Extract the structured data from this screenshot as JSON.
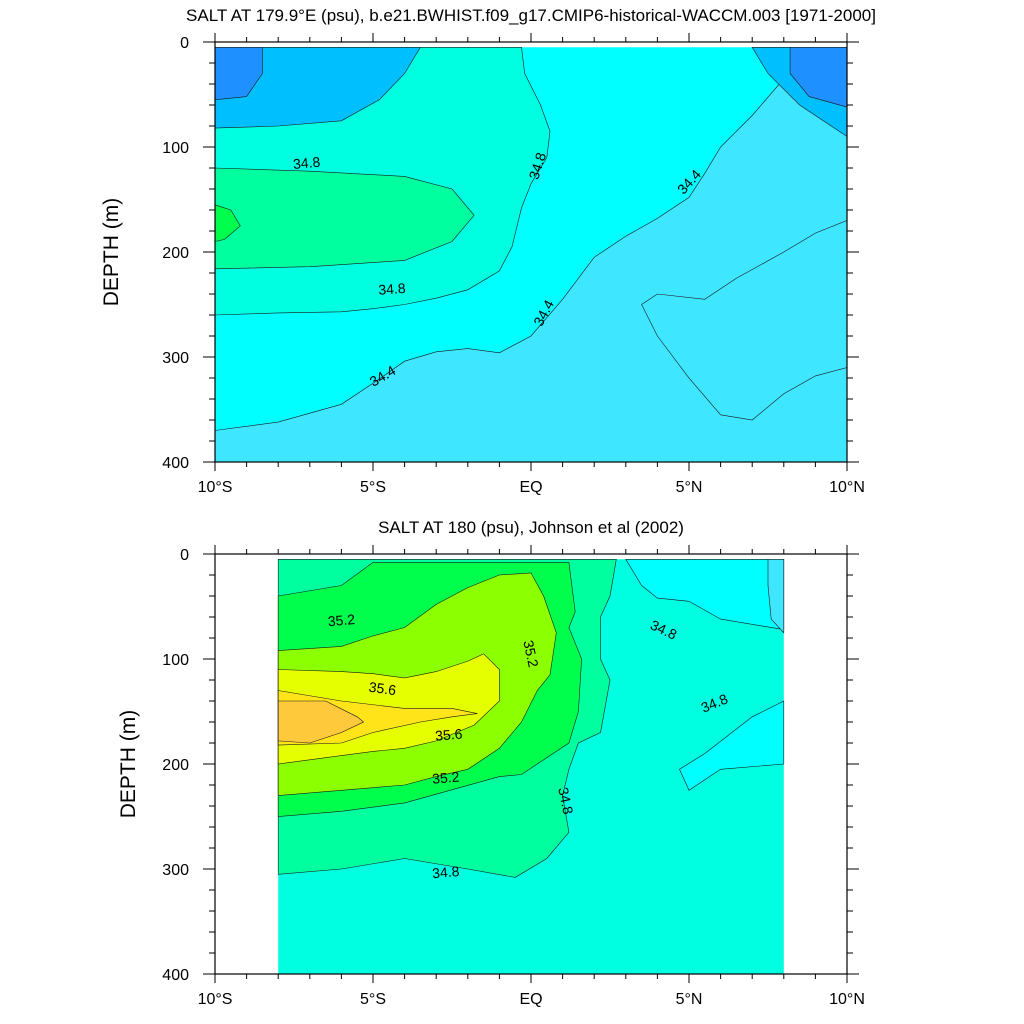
{
  "figure": {
    "panels": [
      {
        "id": "top",
        "title": "SALT AT 179.9°E (psu), b.e21.BWHIST.f09_g17.CMIP6-historical-WACCM.003 [1971-2000]",
        "ylabel": "DEPTH (m)",
        "xticks": [
          "10°S",
          "5°S",
          "EQ",
          "5°N",
          "10°N"
        ],
        "yticks": [
          "0",
          "100",
          "200",
          "300",
          "400"
        ]
      },
      {
        "id": "bottom",
        "title": "SALT AT 180 (psu), Johnson et al (2002)",
        "ylabel": "DEPTH (m)",
        "xticks": [
          "10°S",
          "5°S",
          "EQ",
          "5°N",
          "10°N"
        ],
        "yticks": [
          "0",
          "100",
          "200",
          "300",
          "400"
        ]
      }
    ]
  },
  "chart_data": [
    {
      "type": "heatmap",
      "title": "SALT AT 179.9°E (psu), b.e21.BWHIST.f09_g17.CMIP6-historical-WACCM.003 [1971-2000]",
      "xlabel": "",
      "ylabel": "DEPTH (m)",
      "xlim": [
        -10,
        10
      ],
      "ylim": [
        400,
        0
      ],
      "x_tick_labels": [
        "10°S",
        "5°S",
        "EQ",
        "5°N",
        "10°N"
      ],
      "y_tick_labels": [
        "0",
        "100",
        "200",
        "300",
        "400"
      ],
      "data_extent": {
        "lat": [
          -10,
          10
        ],
        "depth": [
          5,
          400
        ]
      },
      "contour_interval_psu": 0.2,
      "colors": {
        "34.0": "#1e90ff",
        "34.2": "#00bfff",
        "34.4": "#3ee6ff",
        "34.6": "#00ffff",
        "34.8": "#00ffe0",
        "35.0": "#00ff9f",
        "35.2": "#00ff4d",
        "35.4": "#8cff00",
        "35.6": "#e6ff00",
        "35.8": "#ffe41a",
        "36.0": "#ffc93c"
      },
      "regions": [
        {
          "level": 34.6,
          "points": [
            [
              -10,
              5
            ],
            [
              10,
              5
            ],
            [
              10,
              400
            ],
            [
              -10,
              400
            ]
          ]
        },
        {
          "level": 34.4,
          "points": [
            [
              -10,
              370
            ],
            [
              -8,
              362
            ],
            [
              -6,
              345
            ],
            [
              -5,
              325
            ],
            [
              -4,
              304
            ],
            [
              -3,
              295
            ],
            [
              -2,
              292
            ],
            [
              -1,
              296
            ],
            [
              0,
              280
            ],
            [
              1,
              245
            ],
            [
              2,
              205
            ],
            [
              3,
              185
            ],
            [
              4,
              168
            ],
            [
              5,
              148
            ],
            [
              5.5,
              125
            ],
            [
              6,
              100
            ],
            [
              7,
              70
            ],
            [
              8,
              35
            ],
            [
              8.8,
              5
            ],
            [
              10,
              5
            ],
            [
              10,
              400
            ],
            [
              -10,
              400
            ]
          ]
        },
        {
          "level": 34.8,
          "points": [
            [
              -10,
              5
            ],
            [
              -0.3,
              5
            ],
            [
              -0.2,
              30
            ],
            [
              0.3,
              60
            ],
            [
              0.6,
              85
            ],
            [
              0.5,
              110
            ],
            [
              0,
              135
            ],
            [
              -0.3,
              158
            ],
            [
              -0.6,
              195
            ],
            [
              -1,
              218
            ],
            [
              -2,
              236
            ],
            [
              -3,
              244
            ],
            [
              -4,
              250
            ],
            [
              -5,
              254
            ],
            [
              -6,
              257
            ],
            [
              -8,
              258
            ],
            [
              -10,
              260
            ]
          ]
        },
        {
          "level": 34.2,
          "points": [
            [
              10,
              5
            ],
            [
              10,
              90
            ],
            [
              8.5,
              60
            ],
            [
              7.5,
              30
            ],
            [
              7,
              5
            ]
          ]
        },
        {
          "level": 34.2,
          "points": [
            [
              -10,
              5
            ],
            [
              -3.5,
              5
            ],
            [
              -4,
              30
            ],
            [
              -4.8,
              55
            ],
            [
              -6,
              75
            ],
            [
              -8,
              80
            ],
            [
              -10,
              82
            ]
          ]
        },
        {
          "level": 35.0,
          "points": [
            [
              -10,
              120
            ],
            [
              -7,
              123
            ],
            [
              -4,
              128
            ],
            [
              -2.5,
              140
            ],
            [
              -1.8,
              165
            ],
            [
              -2.5,
              190
            ],
            [
              -4,
              208
            ],
            [
              -7,
              214
            ],
            [
              -10,
              216
            ]
          ]
        },
        {
          "level": 34.0,
          "points": [
            [
              10,
              5
            ],
            [
              10,
              62
            ],
            [
              8.8,
              52
            ],
            [
              8.2,
              30
            ],
            [
              8.2,
              5
            ]
          ]
        },
        {
          "level": 34.0,
          "points": [
            [
              -10,
              5
            ],
            [
              -8.5,
              5
            ],
            [
              -8.5,
              30
            ],
            [
              -9,
              52
            ],
            [
              -10,
              55
            ]
          ]
        },
        {
          "level": 35.2,
          "points": [
            [
              -10,
              155
            ],
            [
              -9.5,
              160
            ],
            [
              -9.2,
              175
            ],
            [
              -9.7,
              188
            ],
            [
              -10,
              190
            ]
          ]
        },
        {
          "level": 34.4,
          "points": [
            [
              5.5,
              245
            ],
            [
              6.5,
              225
            ],
            [
              8,
              200
            ],
            [
              9,
              182
            ],
            [
              10,
              170
            ],
            [
              10,
              310
            ],
            [
              9,
              318
            ],
            [
              8,
              335
            ],
            [
              7,
              360
            ],
            [
              6,
              355
            ],
            [
              5,
              320
            ],
            [
              4,
              280
            ],
            [
              3.5,
              250
            ],
            [
              4,
              240
            ]
          ]
        }
      ],
      "contour_labels": [
        {
          "text": "34.8",
          "x": -7.1,
          "y": 115,
          "angle": -5
        },
        {
          "text": "34.8",
          "x": -4.4,
          "y": 235,
          "angle": -4
        },
        {
          "text": "34.4",
          "x": -4.7,
          "y": 318,
          "angle": -30
        },
        {
          "text": "34.8",
          "x": 0.2,
          "y": 118,
          "angle": -72
        },
        {
          "text": "34.4",
          "x": 0.4,
          "y": 258,
          "angle": -62
        },
        {
          "text": "34.4",
          "x": 5.0,
          "y": 133,
          "angle": -48
        }
      ]
    },
    {
      "type": "heatmap",
      "title": "SALT AT 180 (psu), Johnson et al (2002)",
      "xlabel": "",
      "ylabel": "DEPTH (m)",
      "xlim": [
        -10,
        10
      ],
      "ylim": [
        400,
        0
      ],
      "x_tick_labels": [
        "10°S",
        "5°S",
        "EQ",
        "5°N",
        "10°N"
      ],
      "y_tick_labels": [
        "0",
        "100",
        "200",
        "300",
        "400"
      ],
      "data_extent": {
        "lat": [
          -8,
          8
        ],
        "depth": [
          5,
          400
        ]
      },
      "contour_interval_psu": 0.2,
      "colors": {
        "34.0": "#1e90ff",
        "34.2": "#00bfff",
        "34.4": "#3ee6ff",
        "34.6": "#00ffff",
        "34.8": "#00ffe0",
        "35.0": "#00ff9f",
        "35.2": "#00ff4d",
        "35.4": "#8cff00",
        "35.6": "#e6ff00",
        "35.8": "#ffe41a",
        "36.0": "#ffc93c"
      },
      "regions": [
        {
          "level": 34.8,
          "points": [
            [
              -8,
              5
            ],
            [
              8,
              5
            ],
            [
              8,
              400
            ],
            [
              -8,
              400
            ]
          ]
        },
        {
          "level": 34.6,
          "points": [
            [
              3,
              5
            ],
            [
              8,
              5
            ],
            [
              8,
              72
            ],
            [
              6,
              62
            ],
            [
              5,
              45
            ],
            [
              4,
              42
            ],
            [
              3.5,
              30
            ],
            [
              3,
              5
            ]
          ]
        },
        {
          "level": 34.6,
          "points": [
            [
              8,
              140
            ],
            [
              8,
              200
            ],
            [
              6,
              205
            ],
            [
              5,
              225
            ],
            [
              4.7,
              205
            ],
            [
              5.5,
              190
            ],
            [
              7,
              155
            ]
          ]
        },
        {
          "level": 34.4,
          "points": [
            [
              7.5,
              5
            ],
            [
              8,
              5
            ],
            [
              8,
              75
            ],
            [
              7.6,
              62
            ],
            [
              7.5,
              30
            ]
          ]
        },
        {
          "level": 35.0,
          "points": [
            [
              -8,
              5
            ],
            [
              2.7,
              5
            ],
            [
              2.5,
              40
            ],
            [
              2.2,
              60
            ],
            [
              2.2,
              100
            ],
            [
              2.5,
              120
            ],
            [
              2.2,
              170
            ],
            [
              1.5,
              180
            ],
            [
              1.2,
              205
            ],
            [
              1,
              230
            ],
            [
              1.2,
              265
            ],
            [
              0.5,
              290
            ],
            [
              -0.5,
              308
            ],
            [
              -2,
              300
            ],
            [
              -4,
              290
            ],
            [
              -6,
              300
            ],
            [
              -8,
              305
            ]
          ]
        },
        {
          "level": 35.2,
          "points": [
            [
              -8,
              40
            ],
            [
              -6,
              30
            ],
            [
              -5,
              8
            ],
            [
              1.2,
              8
            ],
            [
              1.4,
              55
            ],
            [
              1.2,
              70
            ],
            [
              1.6,
              100
            ],
            [
              1.5,
              150
            ],
            [
              1.2,
              180
            ],
            [
              -0.3,
              210
            ],
            [
              -1,
              212
            ],
            [
              -4,
              237
            ],
            [
              -6,
              245
            ],
            [
              -8,
              250
            ]
          ]
        },
        {
          "level": 35.4,
          "points": [
            [
              -8,
              92
            ],
            [
              -6,
              88
            ],
            [
              -5,
              78
            ],
            [
              -4,
              70
            ],
            [
              -3,
              48
            ],
            [
              -2,
              32
            ],
            [
              -1,
              20
            ],
            [
              0,
              18
            ],
            [
              0.4,
              40
            ],
            [
              0.8,
              75
            ],
            [
              0.6,
              115
            ],
            [
              0.2,
              130
            ],
            [
              -0.3,
              160
            ],
            [
              -1,
              185
            ],
            [
              -2,
              205
            ],
            [
              -3,
              212
            ],
            [
              -4,
              220
            ],
            [
              -6,
              225
            ],
            [
              -8,
              230
            ]
          ]
        },
        {
          "level": 35.6,
          "points": [
            [
              -8,
              110
            ],
            [
              -6,
              112
            ],
            [
              -5,
              114
            ],
            [
              -4,
              118
            ],
            [
              -3,
              112
            ],
            [
              -2,
              102
            ],
            [
              -1.5,
              95
            ],
            [
              -1,
              110
            ],
            [
              -1,
              140
            ],
            [
              -1.8,
              163
            ],
            [
              -3,
              178
            ],
            [
              -4,
              185
            ],
            [
              -5,
              188
            ],
            [
              -6,
              192
            ],
            [
              -8,
              200
            ]
          ]
        },
        {
          "level": 35.8,
          "points": [
            [
              -8,
              130
            ],
            [
              -6,
              140
            ],
            [
              -4,
              147
            ],
            [
              -2.5,
              147
            ],
            [
              -1.7,
              152
            ],
            [
              -2.5,
              155
            ],
            [
              -3.5,
              160
            ],
            [
              -5,
              170
            ],
            [
              -6,
              180
            ],
            [
              -8,
              182
            ]
          ]
        },
        {
          "level": 36.0,
          "points": [
            [
              -8,
              140
            ],
            [
              -6.5,
              140
            ],
            [
              -5.5,
              155
            ],
            [
              -5.3,
              160
            ],
            [
              -6,
              170
            ],
            [
              -7,
              180
            ],
            [
              -8,
              178
            ]
          ]
        }
      ],
      "contour_labels": [
        {
          "text": "35.2",
          "x": -6.0,
          "y": 63,
          "angle": -5
        },
        {
          "text": "35.6",
          "x": -4.7,
          "y": 128,
          "angle": 8
        },
        {
          "text": "35.6",
          "x": -2.6,
          "y": 172,
          "angle": -5
        },
        {
          "text": "35.2",
          "x": -2.7,
          "y": 213,
          "angle": -5
        },
        {
          "text": "34.8",
          "x": -2.7,
          "y": 303,
          "angle": -5
        },
        {
          "text": "35.2",
          "x": 0.0,
          "y": 95,
          "angle": 78
        },
        {
          "text": "34.8",
          "x": 1.1,
          "y": 235,
          "angle": 78
        },
        {
          "text": "34.8",
          "x": 4.2,
          "y": 72,
          "angle": 25
        },
        {
          "text": "34.8",
          "x": 5.8,
          "y": 142,
          "angle": -22
        }
      ]
    }
  ]
}
